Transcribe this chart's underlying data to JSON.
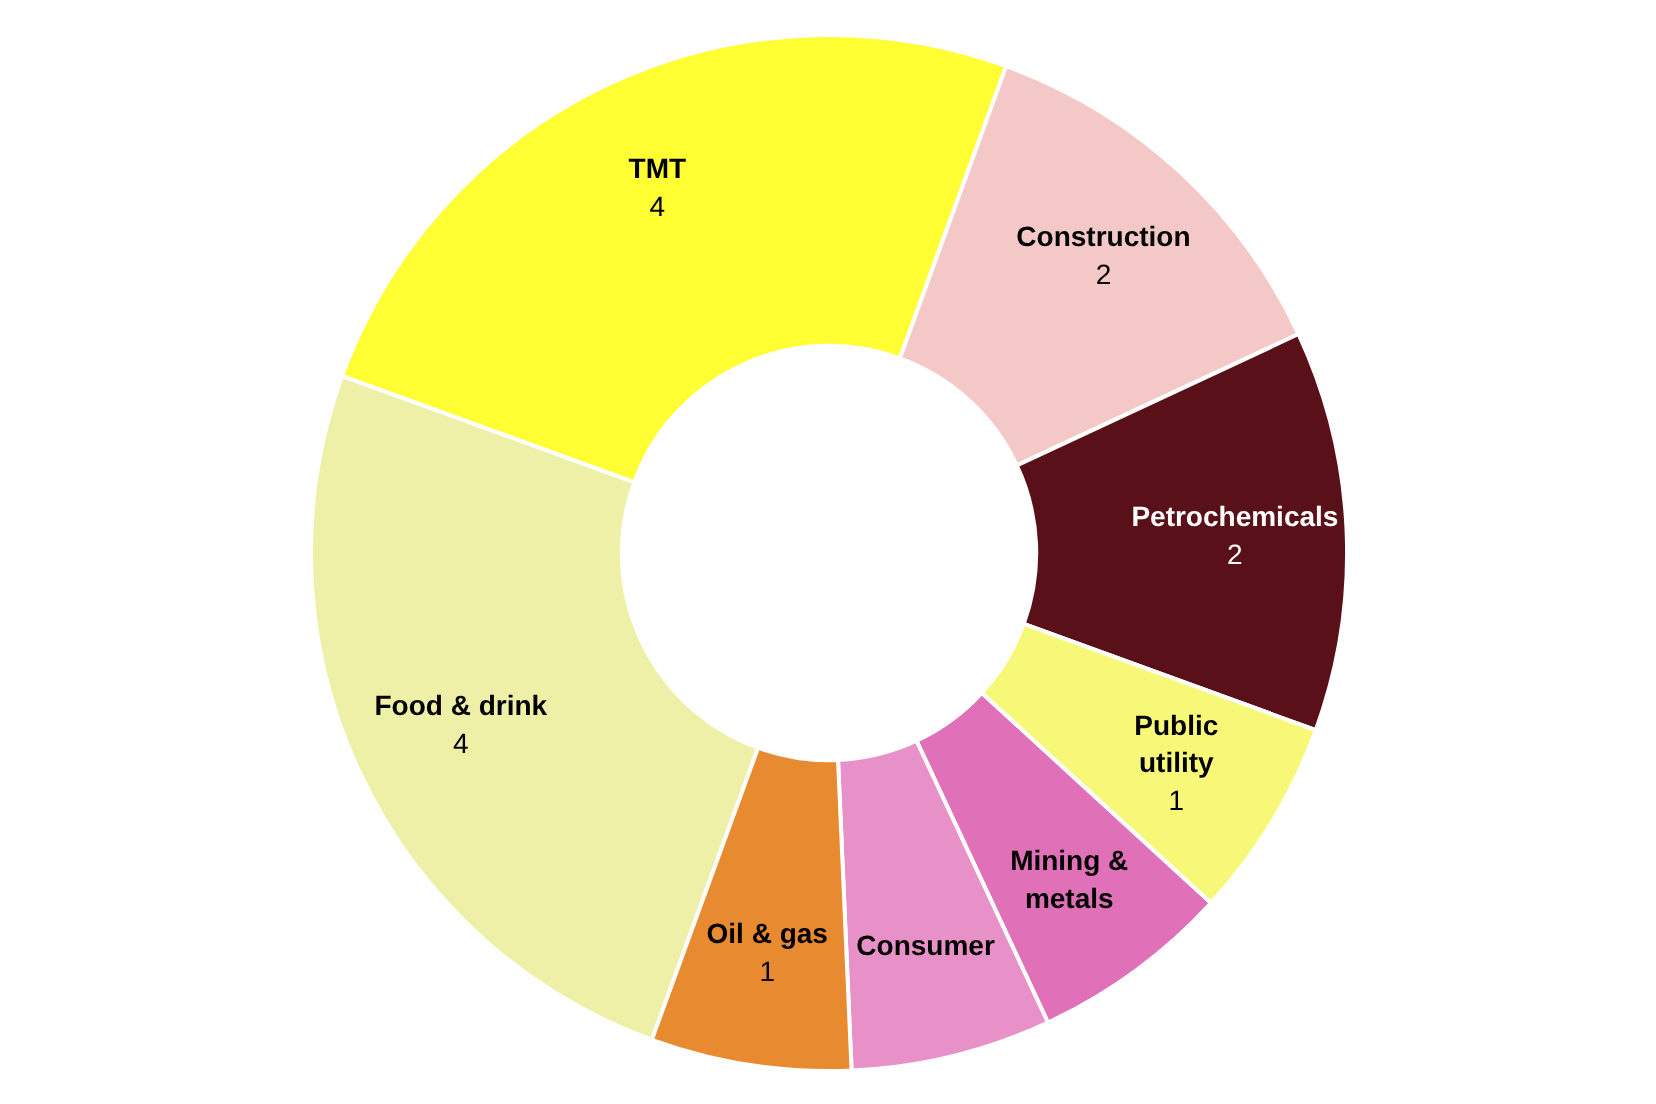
{
  "chart_data": {
    "type": "donut",
    "categories": [
      "Food & drink",
      "TMT",
      "Construction",
      "Petrochemicals",
      "Public utility",
      "Mining & metals",
      "Consumer",
      "Oil & gas"
    ],
    "values": [
      4,
      4,
      2,
      2,
      1,
      1,
      1,
      1
    ],
    "value_labels": [
      "4",
      "4",
      "2",
      "2",
      "1",
      null,
      null,
      "1"
    ],
    "colors": [
      "#eef0a8",
      "#ffff33",
      "#f5c8c8",
      "#5a1018",
      "#f8f878",
      "#e070b8",
      "#e890c8",
      "#e88a30"
    ]
  }
}
